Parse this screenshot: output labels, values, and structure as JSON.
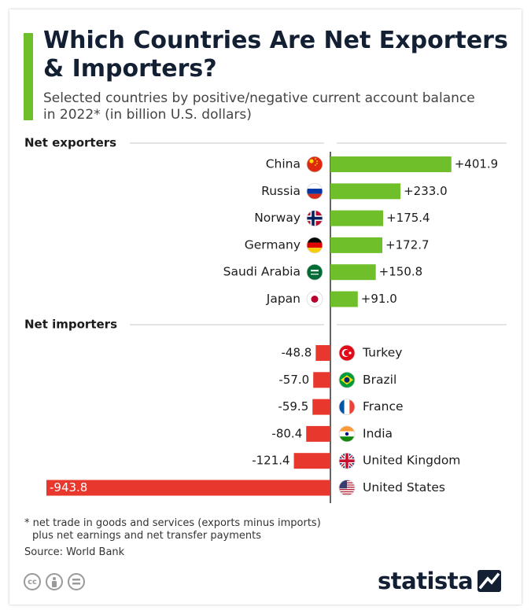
{
  "title": "Which Countries Are Net Exporters & Importers?",
  "subtitle": "Selected countries by positive/negative current account balance in 2022* (in billion U.S. dollars)",
  "colors": {
    "accent": "#6ebf29",
    "positive": "#6ebf29",
    "negative": "#e8372c",
    "axis": "#222222"
  },
  "chart_data": {
    "type": "bar",
    "orientation": "horizontal",
    "unit": "billion U.S. dollars",
    "groups": [
      {
        "label": "Net exporters",
        "items": [
          {
            "country": "China",
            "value": 401.9,
            "label": "+401.9",
            "flag": "china-flag"
          },
          {
            "country": "Russia",
            "value": 233.0,
            "label": "+233.0",
            "flag": "russia-flag"
          },
          {
            "country": "Norway",
            "value": 175.4,
            "label": "+175.4",
            "flag": "norway-flag"
          },
          {
            "country": "Germany",
            "value": 172.7,
            "label": "+172.7",
            "flag": "germany-flag"
          },
          {
            "country": "Saudi Arabia",
            "value": 150.8,
            "label": "+150.8",
            "flag": "saudi-arabia-flag"
          },
          {
            "country": "Japan",
            "value": 91.0,
            "label": "+91.0",
            "flag": "japan-flag"
          }
        ]
      },
      {
        "label": "Net importers",
        "items": [
          {
            "country": "Turkey",
            "value": -48.8,
            "label": "-48.8",
            "flag": "turkey-flag"
          },
          {
            "country": "Brazil",
            "value": -57.0,
            "label": "-57.0",
            "flag": "brazil-flag"
          },
          {
            "country": "France",
            "value": -59.5,
            "label": "-59.5",
            "flag": "france-flag"
          },
          {
            "country": "India",
            "value": -80.4,
            "label": "-80.4",
            "flag": "india-flag"
          },
          {
            "country": "United Kingdom",
            "value": -121.4,
            "label": "-121.4",
            "flag": "united-kingdom-flag"
          },
          {
            "country": "United States",
            "value": -943.8,
            "label": "-943.8",
            "flag": "united-states-flag"
          }
        ]
      }
    ]
  },
  "footnote": {
    "line1": "* net trade in goods and services (exports minus imports)",
    "line2": "plus net earnings and net transfer payments"
  },
  "source": "Source: World Bank",
  "license_icons": [
    "cc-icon",
    "person-icon",
    "equals-icon"
  ],
  "brand": "statista"
}
